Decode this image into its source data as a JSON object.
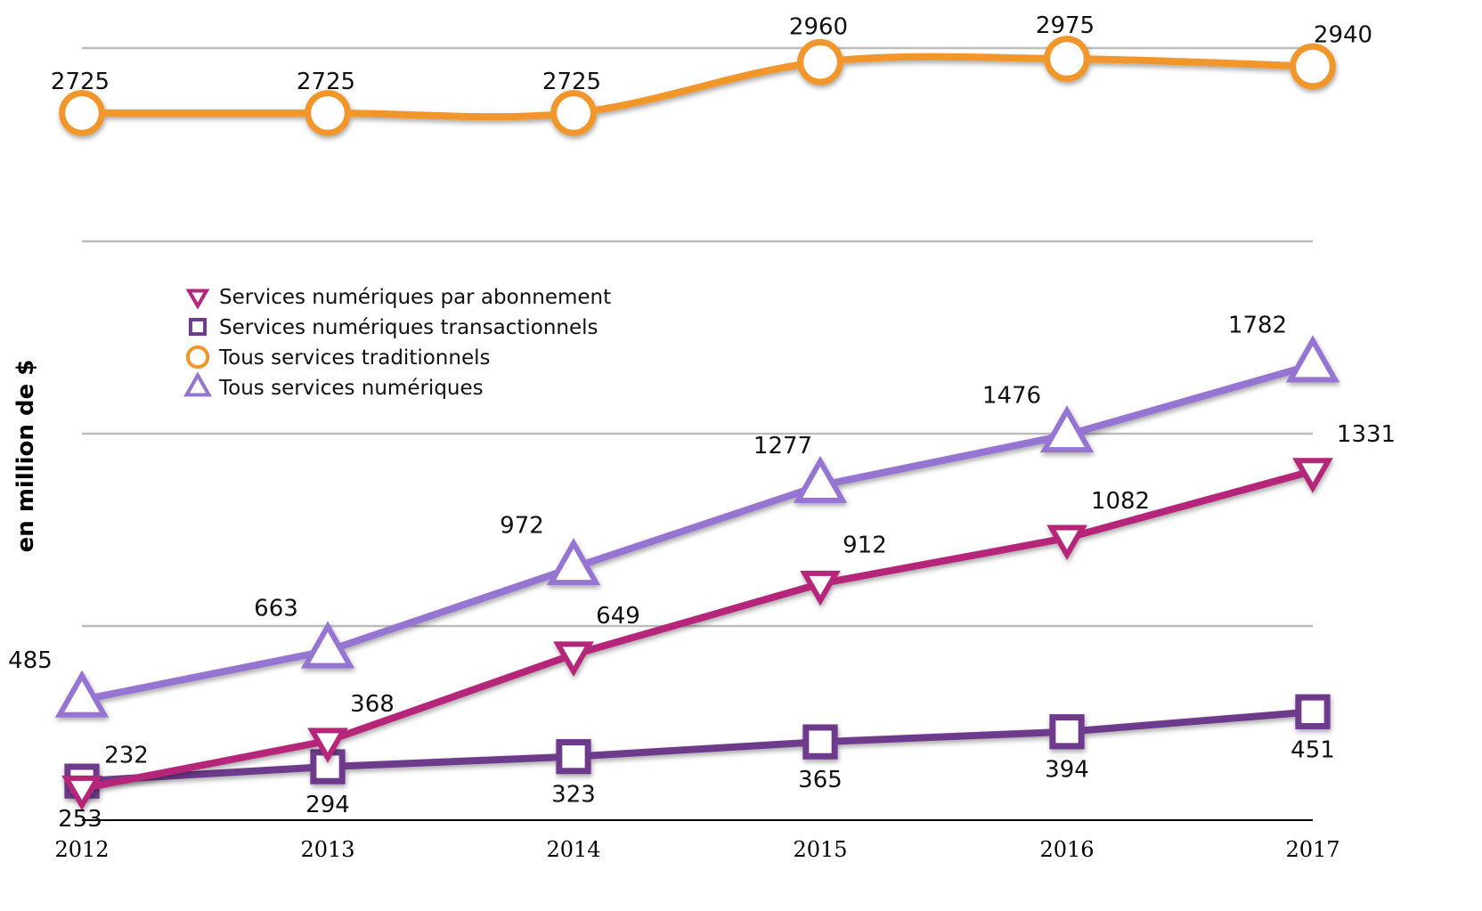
{
  "chart_data": {
    "type": "line",
    "title": "",
    "xlabel": "",
    "ylabel": "en million de $",
    "categories": [
      "2012",
      "2013",
      "2014",
      "2015",
      "2016",
      "2017"
    ],
    "legend_position": "upper-left",
    "grid": true,
    "series": [
      {
        "name": "Services numériques par abonnement",
        "marker": "triangle-down",
        "color": "#B5267A",
        "values": [
          232,
          368,
          649,
          912,
          1082,
          1331
        ]
      },
      {
        "name": "Services numériques transactionnels",
        "marker": "square",
        "color": "#6E3A8C",
        "values": [
          253,
          294,
          323,
          365,
          394,
          451
        ]
      },
      {
        "name": "Tous services traditionnels",
        "marker": "circle",
        "color": "#F0962A",
        "values": [
          2725,
          2725,
          2725,
          2960,
          2975,
          2940
        ]
      },
      {
        "name": "Tous services numériques",
        "marker": "triangle-up",
        "color": "#9575D1",
        "values": [
          485,
          663,
          972,
          1277,
          1476,
          1782
        ]
      }
    ]
  }
}
